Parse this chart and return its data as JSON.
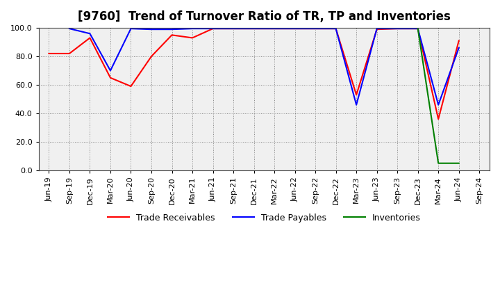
{
  "title": "[9760]  Trend of Turnover Ratio of TR, TP and Inventories",
  "ylim": [
    0.0,
    100.0
  ],
  "yticks": [
    0.0,
    20.0,
    40.0,
    60.0,
    80.0,
    100.0
  ],
  "x_labels": [
    "Jun-19",
    "Sep-19",
    "Dec-19",
    "Mar-20",
    "Jun-20",
    "Sep-20",
    "Dec-20",
    "Mar-21",
    "Jun-21",
    "Sep-21",
    "Dec-21",
    "Mar-22",
    "Jun-22",
    "Sep-22",
    "Dec-22",
    "Mar-23",
    "Jun-23",
    "Sep-23",
    "Dec-23",
    "Mar-24",
    "Jun-24",
    "Sep-24"
  ],
  "trade_receivables": [
    82.0,
    82.0,
    93.0,
    65.0,
    59.0,
    80.0,
    95.0,
    93.0,
    99.5,
    99.5,
    99.5,
    99.5,
    99.5,
    99.5,
    99.5,
    53.0,
    99.0,
    99.5,
    99.5,
    36.0,
    91.0,
    null
  ],
  "trade_payables": [
    null,
    99.5,
    96.0,
    70.0,
    99.5,
    99.0,
    99.0,
    99.5,
    99.5,
    99.5,
    99.5,
    99.5,
    99.5,
    99.5,
    99.5,
    46.0,
    99.5,
    99.5,
    99.5,
    46.0,
    86.0,
    null
  ],
  "inventories": [
    null,
    null,
    null,
    null,
    null,
    null,
    null,
    null,
    null,
    null,
    null,
    null,
    null,
    null,
    null,
    null,
    null,
    null,
    99.5,
    5.0,
    5.0,
    null
  ],
  "line_colors": {
    "trade_receivables": "#ff0000",
    "trade_payables": "#0000ff",
    "inventories": "#008000"
  },
  "legend_labels": {
    "trade_receivables": "Trade Receivables",
    "trade_payables": "Trade Payables",
    "inventories": "Inventories"
  },
  "background_color": "#ffffff",
  "plot_bg_color": "#f0f0f0",
  "grid_color": "#888888",
  "title_fontsize": 12,
  "tick_fontsize": 8
}
